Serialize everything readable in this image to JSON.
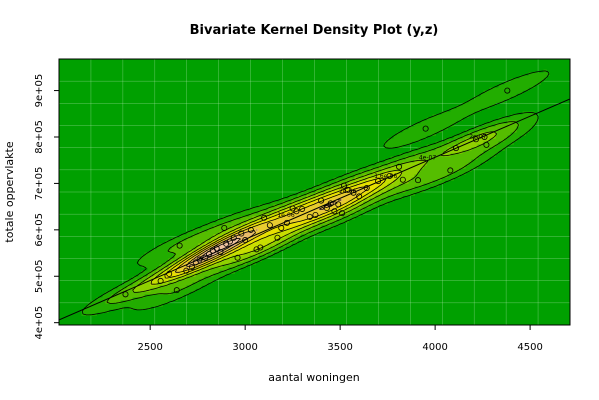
{
  "chart_data": {
    "type": "scatter",
    "title": "Bivariate Kernel Density Plot (y,z)",
    "xlabel": "aantal woningen",
    "ylabel": "totale oppervlakte",
    "xlim": [
      2020,
      4710
    ],
    "ylim": [
      395000,
      968000
    ],
    "x_ticks": [
      2500,
      3000,
      3500,
      4000,
      4500
    ],
    "x_tick_labels": [
      "2500",
      "3000",
      "3500",
      "4000",
      "4500"
    ],
    "y_ticks": [
      400000,
      500000,
      600000,
      700000,
      800000,
      900000
    ],
    "y_tick_labels": [
      "4e+05",
      "5e+05",
      "6e+05",
      "7e+05",
      "8e+05",
      "9e+05"
    ],
    "grid": true,
    "background_color": "#00a000",
    "contour_labels": [
      "2e-07",
      "4e-07",
      "1e-06",
      "1.6e-06",
      "2e-06"
    ],
    "regression_line": {
      "x": [
        2020,
        4710
      ],
      "y": [
        406000,
        882000
      ]
    },
    "points": [
      {
        "x": 2370,
        "y": 461000
      },
      {
        "x": 2555,
        "y": 490000
      },
      {
        "x": 2600,
        "y": 505000
      },
      {
        "x": 2640,
        "y": 470000
      },
      {
        "x": 2655,
        "y": 566000
      },
      {
        "x": 2690,
        "y": 512000
      },
      {
        "x": 2720,
        "y": 520000
      },
      {
        "x": 2740,
        "y": 530000
      },
      {
        "x": 2760,
        "y": 536000
      },
      {
        "x": 2790,
        "y": 540000
      },
      {
        "x": 2810,
        "y": 548000
      },
      {
        "x": 2830,
        "y": 555000
      },
      {
        "x": 2850,
        "y": 560000
      },
      {
        "x": 2870,
        "y": 552000
      },
      {
        "x": 2890,
        "y": 604000
      },
      {
        "x": 2900,
        "y": 570000
      },
      {
        "x": 2920,
        "y": 575000
      },
      {
        "x": 2940,
        "y": 583000
      },
      {
        "x": 2960,
        "y": 540000
      },
      {
        "x": 2980,
        "y": 592000
      },
      {
        "x": 3000,
        "y": 578000
      },
      {
        "x": 3030,
        "y": 600000
      },
      {
        "x": 3060,
        "y": 558000
      },
      {
        "x": 3080,
        "y": 562000
      },
      {
        "x": 3100,
        "y": 626000
      },
      {
        "x": 3130,
        "y": 610000
      },
      {
        "x": 3170,
        "y": 583000
      },
      {
        "x": 3190,
        "y": 604000
      },
      {
        "x": 3220,
        "y": 615000
      },
      {
        "x": 3250,
        "y": 646000
      },
      {
        "x": 3270,
        "y": 640000
      },
      {
        "x": 3300,
        "y": 645000
      },
      {
        "x": 3340,
        "y": 628000
      },
      {
        "x": 3370,
        "y": 632000
      },
      {
        "x": 3400,
        "y": 663000
      },
      {
        "x": 3430,
        "y": 647000
      },
      {
        "x": 3450,
        "y": 657000
      },
      {
        "x": 3470,
        "y": 640000
      },
      {
        "x": 3490,
        "y": 655000
      },
      {
        "x": 3510,
        "y": 636000
      },
      {
        "x": 3520,
        "y": 695000
      },
      {
        "x": 3540,
        "y": 686000
      },
      {
        "x": 3570,
        "y": 680000
      },
      {
        "x": 3600,
        "y": 672000
      },
      {
        "x": 3640,
        "y": 690000
      },
      {
        "x": 3700,
        "y": 705000
      },
      {
        "x": 3760,
        "y": 716000
      },
      {
        "x": 3810,
        "y": 736000
      },
      {
        "x": 3830,
        "y": 708000
      },
      {
        "x": 3910,
        "y": 707000
      },
      {
        "x": 3950,
        "y": 818000
      },
      {
        "x": 4080,
        "y": 728000
      },
      {
        "x": 4110,
        "y": 776000
      },
      {
        "x": 4215,
        "y": 795000
      },
      {
        "x": 4260,
        "y": 800000
      },
      {
        "x": 4270,
        "y": 783000
      },
      {
        "x": 4380,
        "y": 900000
      }
    ]
  }
}
